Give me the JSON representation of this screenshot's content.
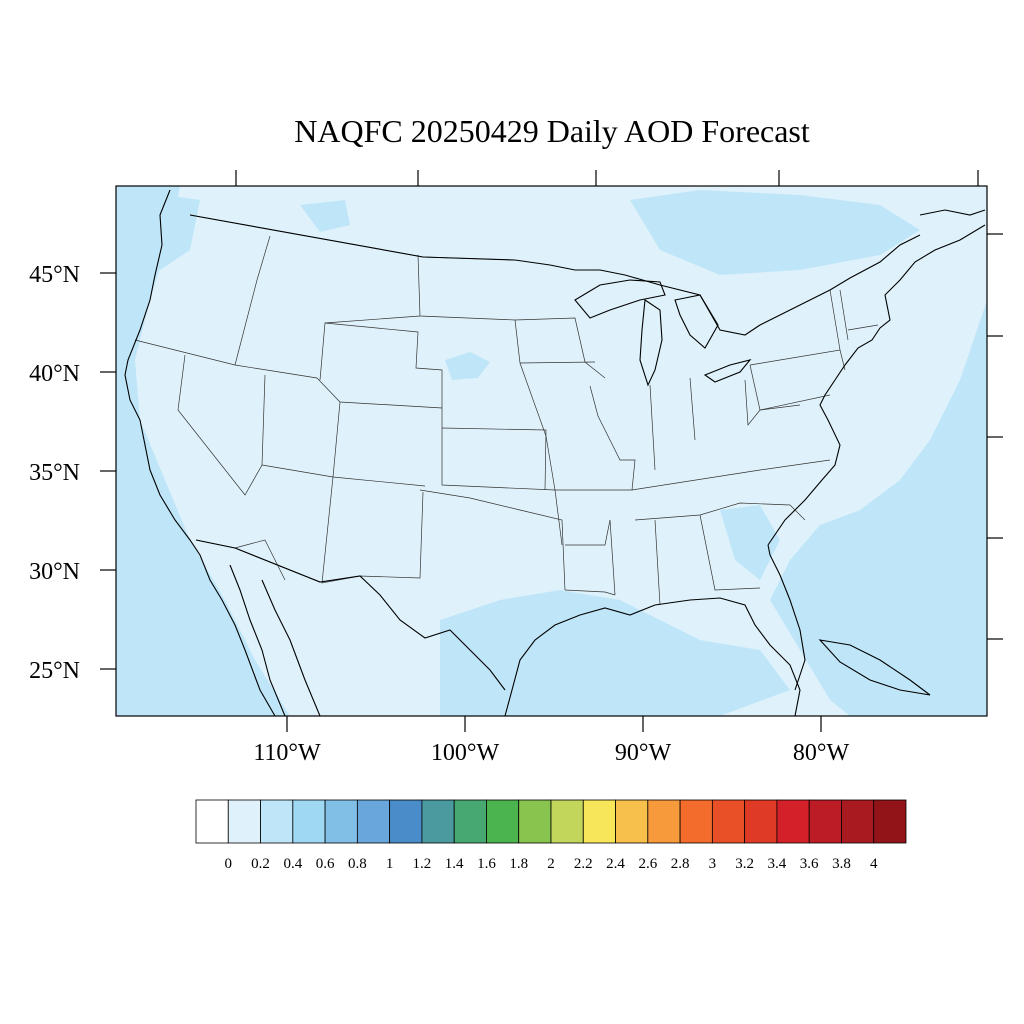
{
  "title": "NAQFC 20250429 Daily AOD Forecast",
  "map": {
    "lat_labels": [
      "45°N",
      "40°N",
      "35°N",
      "30°N",
      "25°N"
    ],
    "lon_labels": [
      "110°W",
      "100°W",
      "90°W",
      "80°W"
    ],
    "background_color": "#dff2fb",
    "field_colors": {
      "low": "#dff2fb",
      "mid": "#bfe6f8"
    }
  },
  "colorbar": {
    "labels": [
      "0",
      "0.2",
      "0.4",
      "0.6",
      "0.8",
      "1",
      "1.2",
      "1.4",
      "1.6",
      "1.8",
      "2",
      "2.2",
      "2.4",
      "2.6",
      "2.8",
      "3",
      "3.2",
      "3.4",
      "3.6",
      "3.8",
      "4"
    ],
    "colors": [
      "#ffffff",
      "#dff2fb",
      "#bfe6f8",
      "#9ed8f3",
      "#82bfe6",
      "#68a6dc",
      "#4a8bc9",
      "#4a9aa0",
      "#48a872",
      "#4cb44e",
      "#88c44e",
      "#c2d65c",
      "#f7e65a",
      "#f7bf4c",
      "#f79a3c",
      "#f36c2c",
      "#ea5028",
      "#de3a26",
      "#d42028",
      "#bc1c24",
      "#a81a20",
      "#931418"
    ]
  }
}
